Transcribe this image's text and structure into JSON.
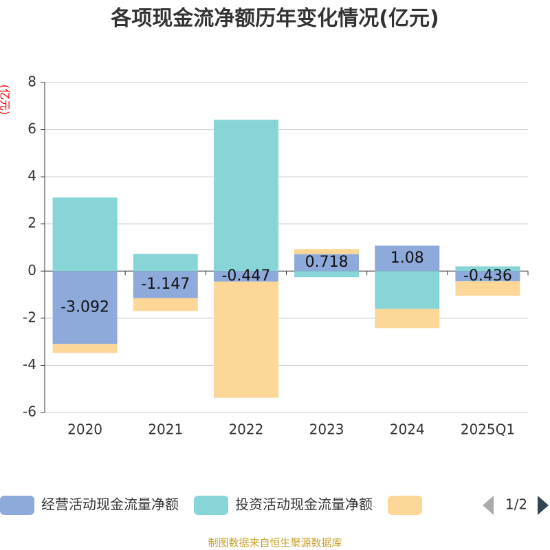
{
  "chart_data": {
    "type": "bar",
    "stacked": true,
    "title": "各项现金流净额历年变化情况(亿元)",
    "y_label": "(亿元)",
    "categories": [
      "2020",
      "2021",
      "2022",
      "2023",
      "2024",
      "2025Q1"
    ],
    "series": [
      {
        "name": "经营活动现金流量净额",
        "color": "#8eaadb",
        "values": [
          -3.092,
          -1.147,
          -0.447,
          0.718,
          1.08,
          -0.436
        ],
        "show_labels": true
      },
      {
        "name": "投资活动现金流量净额",
        "color": "#88d5d8",
        "values": [
          3.12,
          0.73,
          6.42,
          -0.26,
          -1.6,
          0.2
        ]
      },
      {
        "color": "#fdd797",
        "values": [
          -0.38,
          -0.55,
          -4.93,
          0.22,
          -0.82,
          -0.61
        ]
      }
    ],
    "ylim": [
      -6,
      8
    ],
    "yticks": [
      -6,
      -4,
      -2,
      0,
      2,
      4,
      6,
      8
    ],
    "grid": true,
    "legend_page": "1/2",
    "source": "制图数据来自恒生聚源数据库"
  }
}
